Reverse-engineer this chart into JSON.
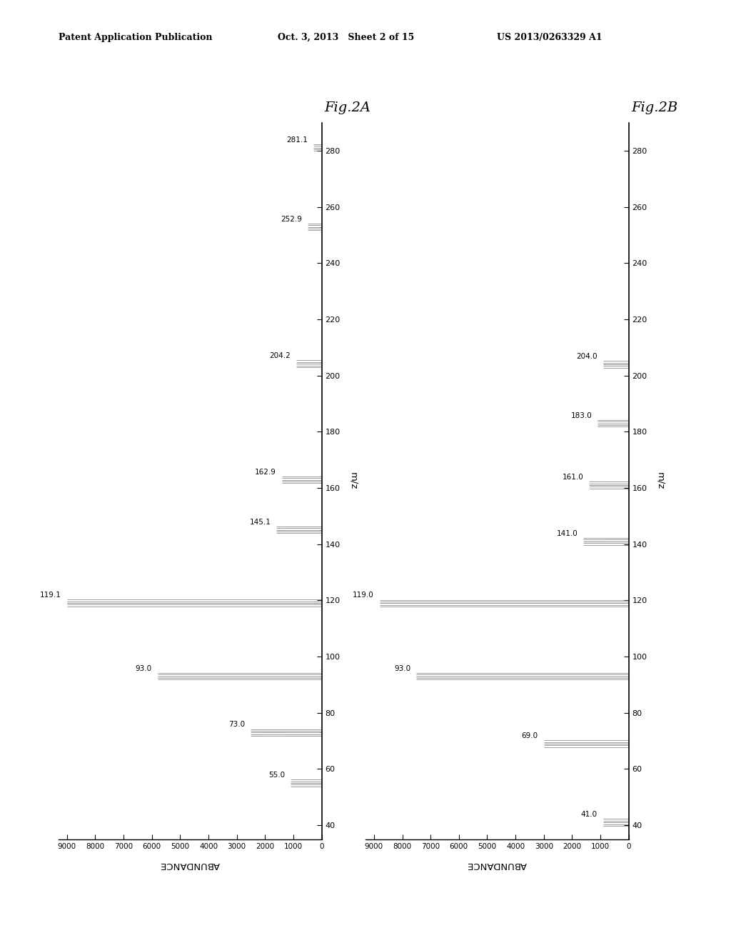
{
  "header_left": "Patent Application Publication",
  "header_mid": "Oct. 3, 2013   Sheet 2 of 15",
  "header_right": "US 2013/0263329 A1",
  "fig2A_label": "Fig.2A",
  "fig2B_label": "Fig.2B",
  "fig2A_peaks": [
    {
      "mz": 55.0,
      "abundance": 1100
    },
    {
      "mz": 73.0,
      "abundance": 2500
    },
    {
      "mz": 93.0,
      "abundance": 5800
    },
    {
      "mz": 119.1,
      "abundance": 9000
    },
    {
      "mz": 145.1,
      "abundance": 1600
    },
    {
      "mz": 162.9,
      "abundance": 1400
    },
    {
      "mz": 204.2,
      "abundance": 900
    },
    {
      "mz": 252.9,
      "abundance": 500
    },
    {
      "mz": 281.1,
      "abundance": 300
    }
  ],
  "fig2B_peaks": [
    {
      "mz": 41.0,
      "abundance": 900
    },
    {
      "mz": 69.0,
      "abundance": 3000
    },
    {
      "mz": 93.0,
      "abundance": 7500
    },
    {
      "mz": 119.0,
      "abundance": 8800
    },
    {
      "mz": 141.0,
      "abundance": 1600
    },
    {
      "mz": 161.0,
      "abundance": 1400
    },
    {
      "mz": 183.0,
      "abundance": 1100
    },
    {
      "mz": 204.0,
      "abundance": 900
    }
  ],
  "xlabel": "ABUNDANCE",
  "ylabel": "m/z",
  "ab_max": 9000,
  "ab_ticks": [
    0,
    1000,
    2000,
    3000,
    4000,
    5000,
    6000,
    7000,
    8000,
    9000
  ],
  "mz_ticks": [
    40,
    60,
    80,
    100,
    120,
    140,
    160,
    180,
    200,
    220,
    240,
    260,
    280
  ],
  "mz_min": 35,
  "mz_max": 290,
  "background_color": "#ffffff"
}
